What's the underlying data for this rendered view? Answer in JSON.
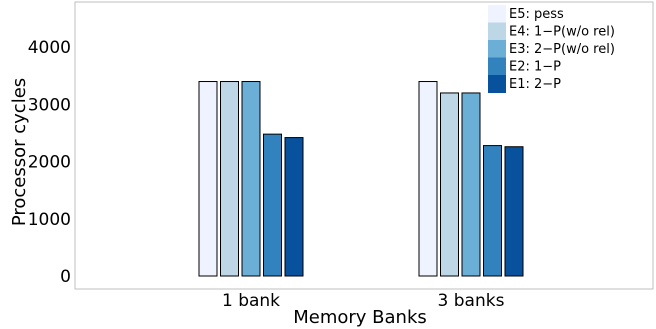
{
  "chart_data": {
    "type": "bar",
    "title": "",
    "xlabel": "Memory Banks",
    "ylabel": "Processor cycles",
    "categories": [
      "1 bank",
      "3 banks"
    ],
    "ylim": [
      0,
      4800
    ],
    "yticks": [
      0,
      1000,
      2000,
      3000,
      4000
    ],
    "grid": false,
    "legend_position": "top-right",
    "series": [
      {
        "name": "E5: pess",
        "color": "#eff3ff",
        "values": [
          3400,
          3400
        ]
      },
      {
        "name": "E4: 1−P(w/o rel)",
        "color": "#bdd7e7",
        "values": [
          3400,
          3200
        ]
      },
      {
        "name": "E3: 2−P(w/o rel)",
        "color": "#6baed6",
        "values": [
          3400,
          3200
        ]
      },
      {
        "name": "E2: 1−P",
        "color": "#3182bd",
        "values": [
          2480,
          2280
        ]
      },
      {
        "name": "E1: 2−P",
        "color": "#08519c",
        "values": [
          2420,
          2260
        ]
      }
    ]
  }
}
